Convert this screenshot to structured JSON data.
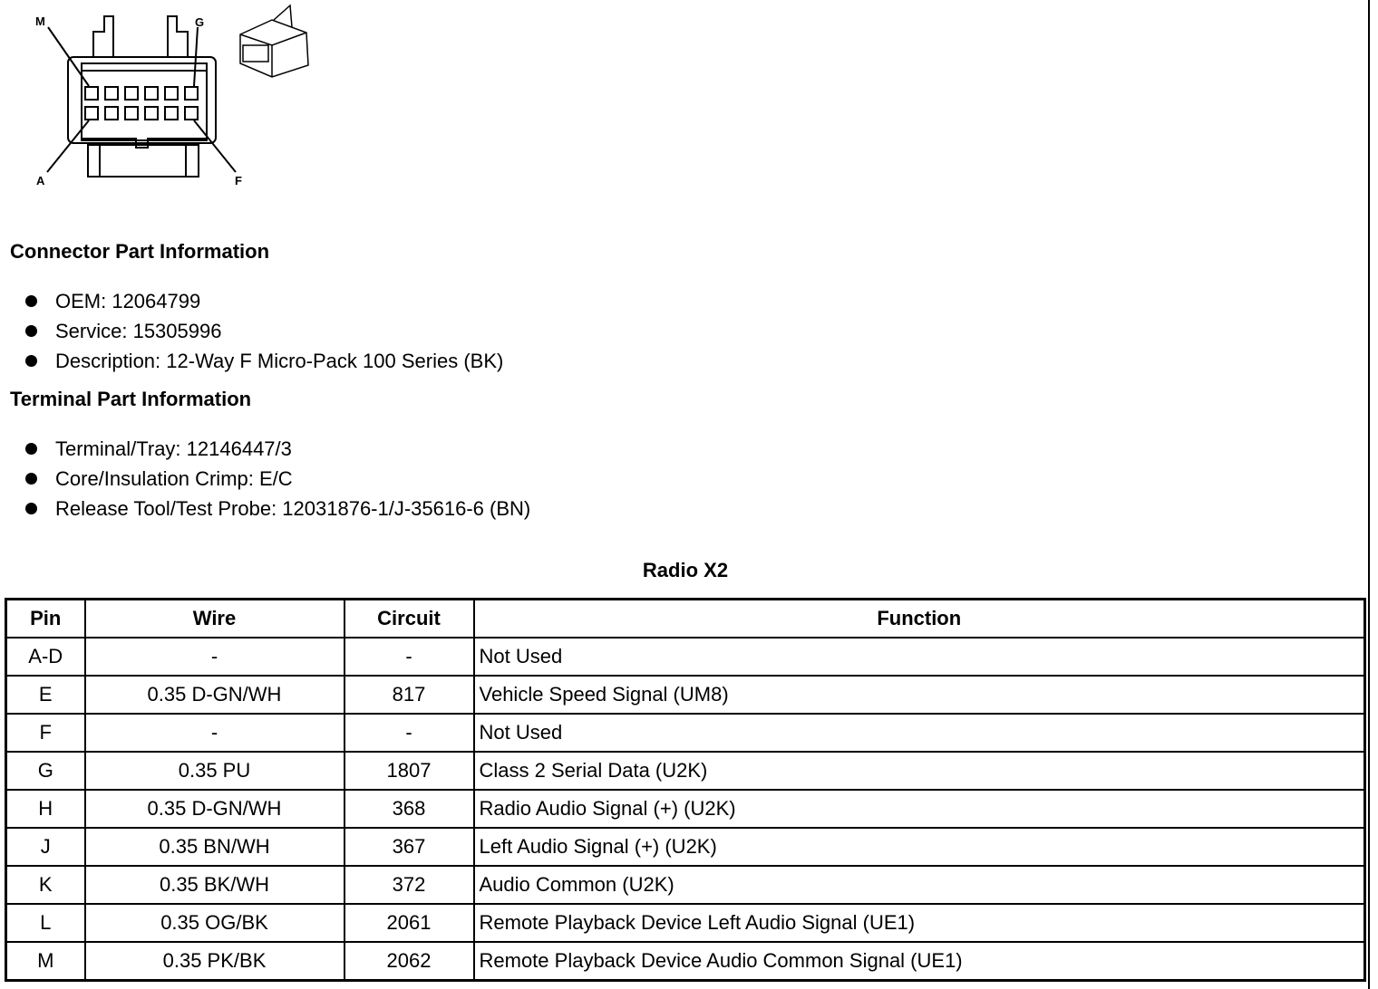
{
  "drawing": {
    "labels": {
      "top_left": "M",
      "top_right": "G",
      "bottom_left": "A",
      "bottom_right": "F"
    }
  },
  "connector_info": {
    "heading": "Connector Part Information",
    "items": [
      "OEM: 12064799",
      "Service: 15305996",
      "Description: 12-Way F Micro-Pack 100 Series (BK)"
    ]
  },
  "terminal_info": {
    "heading": "Terminal Part Information",
    "items": [
      "Terminal/Tray: 12146447/3",
      "Core/Insulation Crimp: E/C",
      "Release Tool/Test Probe: 12031876-1/J-35616-6 (BN)"
    ]
  },
  "table": {
    "title": "Radio X2",
    "headers": [
      "Pin",
      "Wire",
      "Circuit",
      "Function"
    ],
    "rows": [
      [
        "A-D",
        "-",
        "-",
        "Not Used"
      ],
      [
        "E",
        "0.35 D-GN/WH",
        "817",
        "Vehicle Speed Signal (UM8)"
      ],
      [
        "F",
        "-",
        "-",
        "Not Used"
      ],
      [
        "G",
        "0.35 PU",
        "1807",
        "Class 2 Serial Data (U2K)"
      ],
      [
        "H",
        "0.35 D-GN/WH",
        "368",
        "Radio Audio Signal (+) (U2K)"
      ],
      [
        "J",
        "0.35 BN/WH",
        "367",
        "Left Audio Signal (+) (U2K)"
      ],
      [
        "K",
        "0.35 BK/WH",
        "372",
        "Audio Common (U2K)"
      ],
      [
        "L",
        "0.35 OG/BK",
        "2061",
        "Remote Playback Device Left Audio Signal (UE1)"
      ],
      [
        "M",
        "0.35 PK/BK",
        "2062",
        "Remote Playback Device Audio Common Signal (UE1)"
      ]
    ]
  }
}
